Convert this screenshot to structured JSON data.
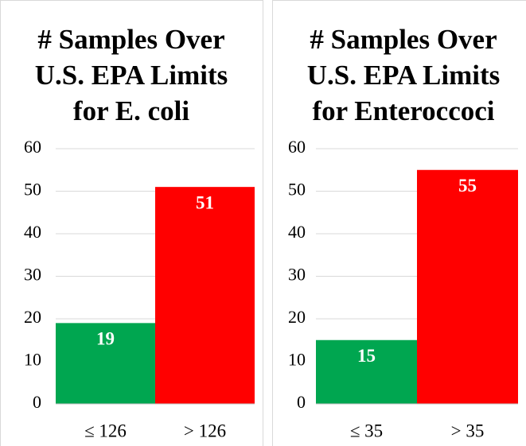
{
  "chart_data": [
    {
      "type": "bar",
      "title": [
        "# Samples Over",
        "U.S. EPA Limits",
        "for E. coli"
      ],
      "categories": [
        "≤ 126",
        "> 126"
      ],
      "values": [
        19,
        51
      ],
      "colors": [
        "#00a650",
        "#ff0000"
      ],
      "ylim": [
        0,
        60
      ],
      "yticks": [
        0,
        10,
        20,
        30,
        40,
        50,
        60
      ],
      "grid": true
    },
    {
      "type": "bar",
      "title": [
        "# Samples Over",
        "U.S. EPA Limits",
        "for Enteroccoci"
      ],
      "categories": [
        "≤ 35",
        "> 35"
      ],
      "values": [
        15,
        55
      ],
      "colors": [
        "#00a650",
        "#ff0000"
      ],
      "ylim": [
        0,
        60
      ],
      "yticks": [
        0,
        10,
        20,
        30,
        40,
        50,
        60
      ],
      "grid": true
    }
  ]
}
